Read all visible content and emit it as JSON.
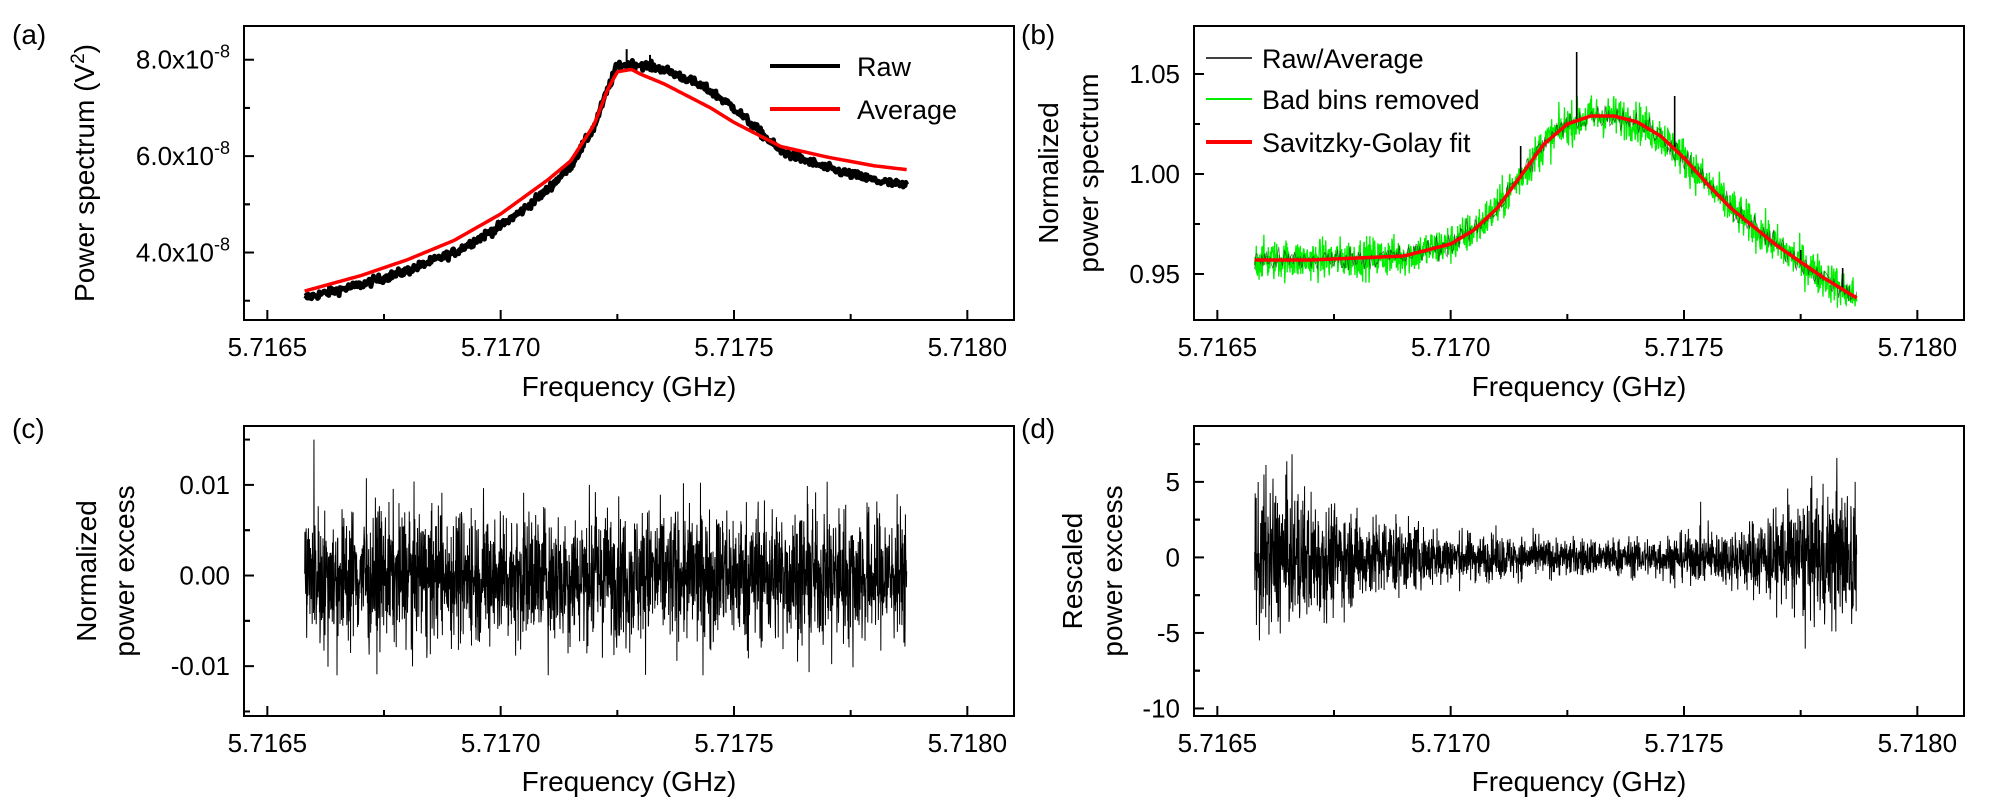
{
  "figure": {
    "panels": [
      {
        "id": "a",
        "letter": "(a)",
        "xlabel": "Frequency (GHz)",
        "ylabel_line1": "Power spectrum (V",
        "ylabel_sup": "2",
        "ylabel_close": ")"
      },
      {
        "id": "b",
        "letter": "(b)",
        "xlabel": "Frequency (GHz)",
        "ylabel_line1": "Normalized",
        "ylabel_line2": "power spectrum"
      },
      {
        "id": "c",
        "letter": "(c)",
        "xlabel": "Frequency (GHz)",
        "ylabel_line1": "Normalized",
        "ylabel_line2": "power excess"
      },
      {
        "id": "d",
        "letter": "(d)",
        "xlabel": "Frequency (GHz)",
        "ylabel_line1": "Rescaled",
        "ylabel_line2": "power excess"
      }
    ]
  },
  "chart_data": [
    {
      "panel": "a",
      "type": "line",
      "title": "",
      "xlabel": "Frequency (GHz)",
      "ylabel": "Power spectrum (V2)",
      "xlim": [
        5.71645,
        5.7181
      ],
      "ylim": [
        2.6e-08,
        8.7e-08
      ],
      "x_ticks": [
        5.7165,
        5.717,
        5.7175,
        5.718
      ],
      "x_tick_labels": [
        "5.7165",
        "5.7170",
        "5.7175",
        "5.7180"
      ],
      "y_ticks": [
        4e-08,
        6e-08,
        8e-08
      ],
      "y_tick_labels": [
        {
          "mant": "4.0x10",
          "exp": "-8"
        },
        {
          "mant": "6.0x10",
          "exp": "-8"
        },
        {
          "mant": "8.0x10",
          "exp": "-8"
        }
      ],
      "legend_position": "top-right",
      "series": [
        {
          "name": "Raw",
          "color": "#000000",
          "x": [
            5.71658,
            5.7167,
            5.7168,
            5.7169,
            5.717,
            5.71705,
            5.7171,
            5.71715,
            5.7172,
            5.71723,
            5.71725,
            5.71728,
            5.7173,
            5.71735,
            5.7174,
            5.71745,
            5.7175,
            5.71755,
            5.7176,
            5.7177,
            5.7178,
            5.71787
          ],
          "y": [
            3.06e-08,
            3.33e-08,
            3.62e-08,
            4e-08,
            4.55e-08,
            4.9e-08,
            5.3e-08,
            5.8e-08,
            6.6e-08,
            7.4e-08,
            7.88e-08,
            7.9e-08,
            7.9e-08,
            7.8e-08,
            7.6e-08,
            7.35e-08,
            7e-08,
            6.55e-08,
            6.1e-08,
            5.75e-08,
            5.5e-08,
            5.38e-08
          ]
        },
        {
          "name": "Average",
          "color": "#ff0000",
          "x": [
            5.71658,
            5.7167,
            5.7168,
            5.7169,
            5.717,
            5.71705,
            5.7171,
            5.71715,
            5.7172,
            5.71723,
            5.71725,
            5.71728,
            5.7173,
            5.71735,
            5.7174,
            5.71745,
            5.7175,
            5.71755,
            5.7176,
            5.7177,
            5.7178,
            5.71787
          ],
          "y": [
            3.2e-08,
            3.52e-08,
            3.85e-08,
            4.25e-08,
            4.8e-08,
            5.15e-08,
            5.5e-08,
            5.9e-08,
            6.65e-08,
            7.4e-08,
            7.75e-08,
            7.8e-08,
            7.7e-08,
            7.5e-08,
            7.25e-08,
            7e-08,
            6.7e-08,
            6.45e-08,
            6.2e-08,
            5.98e-08,
            5.8e-08,
            5.72e-08
          ]
        }
      ]
    },
    {
      "panel": "b",
      "type": "line",
      "title": "",
      "xlabel": "Frequency (GHz)",
      "ylabel": "Normalized power spectrum",
      "xlim": [
        5.71645,
        5.7181
      ],
      "ylim": [
        0.927,
        1.074
      ],
      "x_ticks": [
        5.7165,
        5.717,
        5.7175,
        5.718
      ],
      "x_tick_labels": [
        "5.7165",
        "5.7170",
        "5.7175",
        "5.7180"
      ],
      "y_ticks": [
        0.95,
        1.0,
        1.05
      ],
      "y_tick_labels": [
        "0.95",
        "1.00",
        "1.05"
      ],
      "legend_position": "top-left",
      "noise_amplitude": {
        "raw_average": 0.003,
        "bad_bins_removed": 0.005
      },
      "series": [
        {
          "name": "Raw/Average",
          "color": "#000000",
          "spikes": [
            {
              "x": 5.71727,
              "y": 1.061
            },
            {
              "x": 5.71715,
              "y": 1.014
            },
            {
              "x": 5.71748,
              "y": 1.039
            },
            {
              "x": 5.71775,
              "y": 0.962
            },
            {
              "x": 5.71784,
              "y": 0.953
            }
          ]
        },
        {
          "name": "Bad bins removed",
          "color": "#00ee00"
        },
        {
          "name": "Savitzky-Golay fit",
          "color": "#ff0000",
          "x": [
            5.71658,
            5.7166,
            5.7167,
            5.7168,
            5.7169,
            5.717,
            5.71705,
            5.7171,
            5.71715,
            5.7172,
            5.71725,
            5.7173,
            5.71735,
            5.7174,
            5.71745,
            5.7175,
            5.71755,
            5.7176,
            5.7177,
            5.7178,
            5.71787
          ],
          "y": [
            0.957,
            0.957,
            0.957,
            0.958,
            0.959,
            0.965,
            0.972,
            0.983,
            0.999,
            1.015,
            1.025,
            1.029,
            1.029,
            1.026,
            1.019,
            1.008,
            0.995,
            0.983,
            0.964,
            0.948,
            0.938
          ]
        }
      ]
    },
    {
      "panel": "c",
      "type": "line",
      "title": "",
      "xlabel": "Frequency (GHz)",
      "ylabel": "Normalized power excess",
      "xlim": [
        5.71645,
        5.7181
      ],
      "ylim": [
        -0.0155,
        0.0165
      ],
      "x_ticks": [
        5.7165,
        5.717,
        5.7175,
        5.718
      ],
      "x_tick_labels": [
        "5.7165",
        "5.7170",
        "5.7175",
        "5.7180"
      ],
      "y_ticks": [
        -0.01,
        0.0,
        0.01
      ],
      "y_tick_labels": [
        "-0.01",
        "0.00",
        "0.01"
      ],
      "series": [
        {
          "name": "Normalized power excess",
          "color": "#000000",
          "x_range": [
            5.71658,
            5.71787
          ],
          "envelope": [
            -0.011,
            0.012
          ]
        }
      ]
    },
    {
      "panel": "d",
      "type": "line",
      "title": "",
      "xlabel": "Frequency (GHz)",
      "ylabel": "Rescaled power excess",
      "xlim": [
        5.71645,
        5.7181
      ],
      "ylim": [
        -10.5,
        8.7
      ],
      "x_ticks": [
        5.7165,
        5.717,
        5.7175,
        5.718
      ],
      "x_tick_labels": [
        "5.7165",
        "5.7170",
        "5.7175",
        "5.7180"
      ],
      "y_ticks": [
        -10,
        -5,
        0,
        5
      ],
      "y_tick_labels": [
        "-10",
        "-5",
        "0",
        "5"
      ],
      "series": [
        {
          "name": "Rescaled power excess",
          "color": "#000000",
          "x_range": [
            5.71658,
            5.71787
          ],
          "envelope_x": [
            5.71658,
            5.71665,
            5.7168,
            5.717,
            5.7172,
            5.7174,
            5.7176,
            5.7178,
            5.71787
          ],
          "envelope_amp": [
            7.0,
            6.5,
            4.0,
            2.3,
            1.7,
            1.7,
            2.5,
            6.0,
            6.5
          ]
        }
      ]
    }
  ]
}
